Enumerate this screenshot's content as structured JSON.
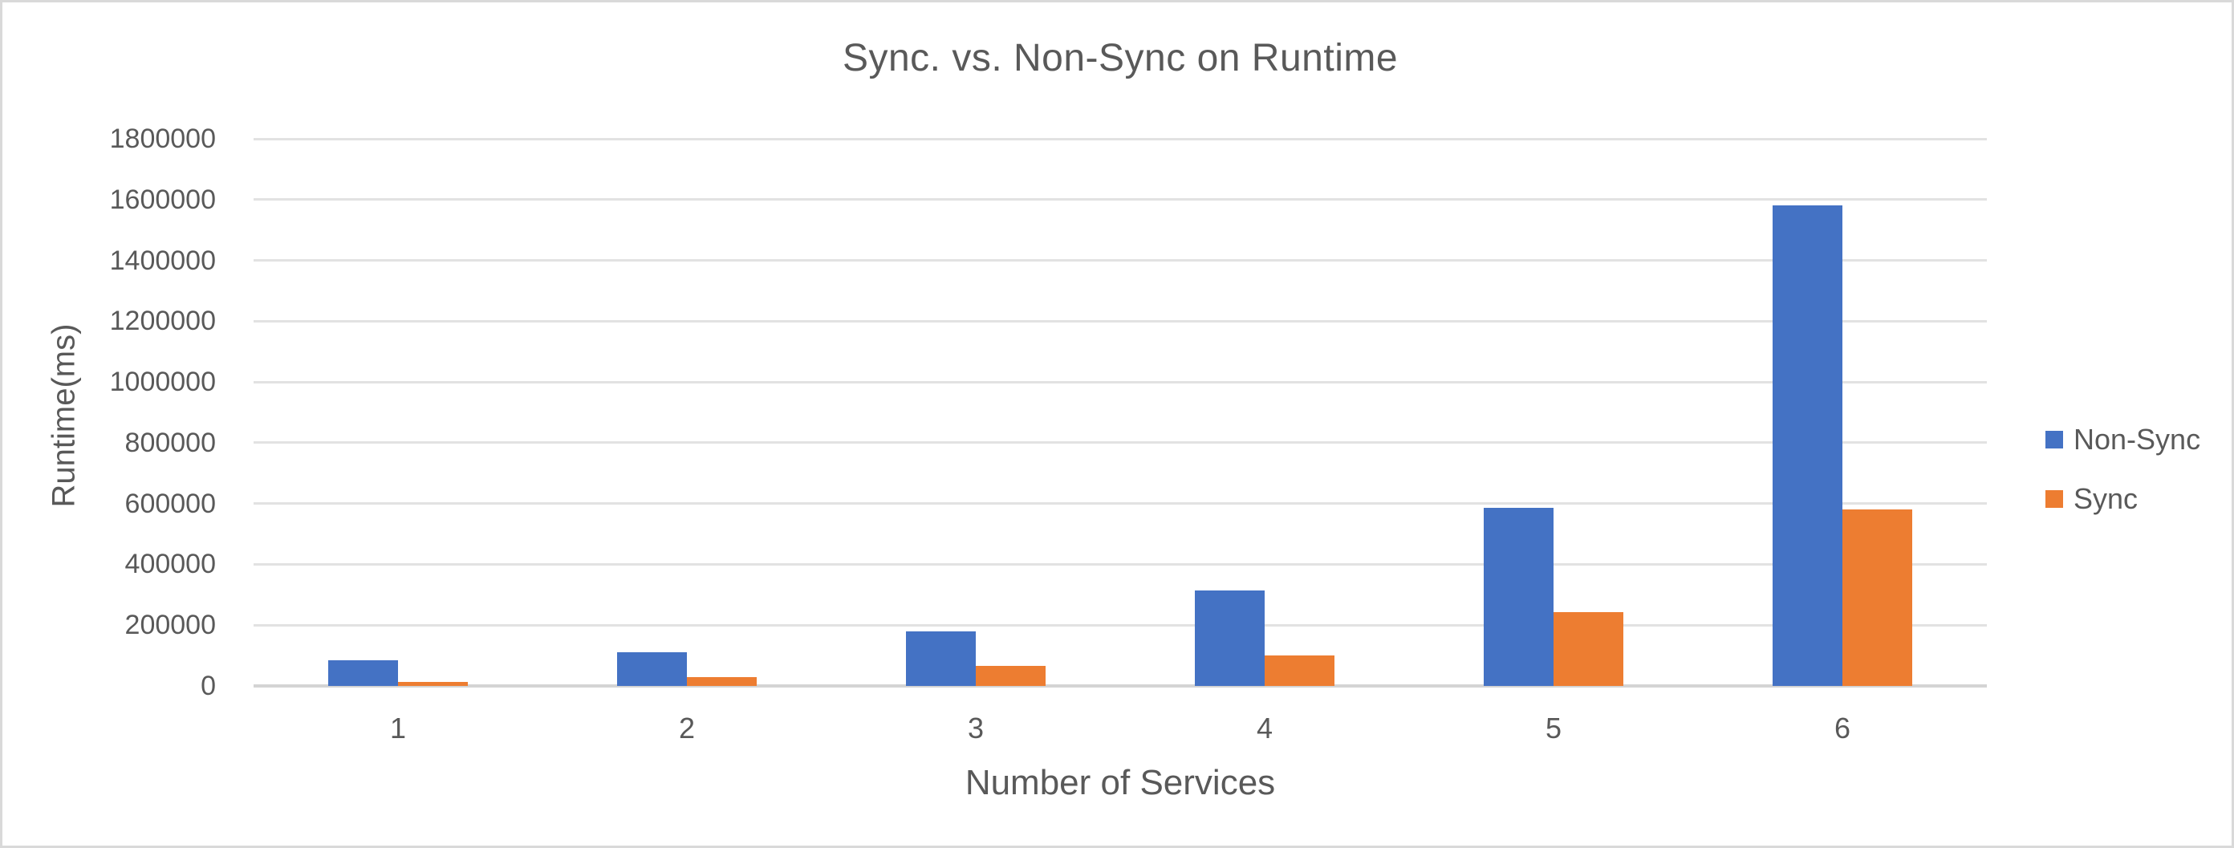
{
  "chart_data": {
    "type": "bar",
    "title": "Sync. vs. Non-Sync on Runtime",
    "xlabel": "Number of Services",
    "ylabel": "Runtime(ms)",
    "categories": [
      "1",
      "2",
      "3",
      "4",
      "5",
      "6"
    ],
    "series": [
      {
        "name": "Non-Sync",
        "color": "#4472C4",
        "values": [
          85000,
          110000,
          180000,
          313000,
          585000,
          1580000
        ]
      },
      {
        "name": "Sync",
        "color": "#ED7D31",
        "values": [
          13000,
          28000,
          65000,
          100000,
          242000,
          580000
        ]
      }
    ],
    "ylim": [
      0,
      1800000
    ],
    "ytick_step": 200000,
    "yticklabels": [
      "0",
      "200000",
      "400000",
      "600000",
      "800000",
      "1000000",
      "1200000",
      "1400000",
      "1600000",
      "1800000"
    ],
    "grid": true,
    "legend_position": "right"
  },
  "colors": {
    "text": "#595959",
    "gridline": "#E2E2E2",
    "axis_line": "#D4D4D4",
    "frame_border": "#D9D9D9",
    "background": "#FFFFFF"
  }
}
